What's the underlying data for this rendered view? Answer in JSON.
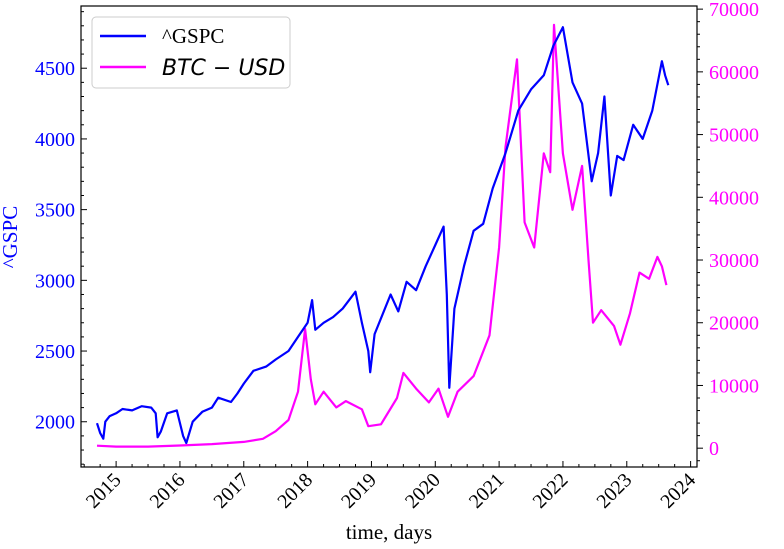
{
  "chart_data": {
    "type": "line",
    "xlabel": "time, days",
    "ylabel_left": "^GSPC",
    "ylabel_right": "",
    "x_ticks": [
      "2015",
      "2016",
      "2017",
      "2018",
      "2019",
      "2020",
      "2021",
      "2022",
      "2023",
      "2024"
    ],
    "x_range": [
      2014.45,
      2024.1
    ],
    "y_left": {
      "range": [
        1680,
        4940
      ],
      "ticks": [
        2000,
        2500,
        3000,
        3500,
        4000,
        4500
      ],
      "color": "#0000ff"
    },
    "y_right": {
      "range": [
        -3000,
        70500
      ],
      "ticks": [
        0,
        10000,
        20000,
        30000,
        40000,
        50000,
        60000,
        70000
      ],
      "color": "#ff00ff"
    },
    "legend_position": "top-left",
    "grid": false,
    "series": [
      {
        "name": "^GSPC",
        "axis": "left",
        "color": "#0000ff",
        "points": [
          [
            2014.7,
            1990
          ],
          [
            2014.75,
            1920
          ],
          [
            2014.8,
            1880
          ],
          [
            2014.83,
            2000
          ],
          [
            2014.9,
            2040
          ],
          [
            2015.0,
            2060
          ],
          [
            2015.1,
            2090
          ],
          [
            2015.25,
            2080
          ],
          [
            2015.4,
            2110
          ],
          [
            2015.55,
            2100
          ],
          [
            2015.62,
            2060
          ],
          [
            2015.65,
            1890
          ],
          [
            2015.7,
            1930
          ],
          [
            2015.8,
            2060
          ],
          [
            2015.95,
            2080
          ],
          [
            2016.05,
            1900
          ],
          [
            2016.1,
            1850
          ],
          [
            2016.2,
            2000
          ],
          [
            2016.35,
            2070
          ],
          [
            2016.5,
            2100
          ],
          [
            2016.6,
            2170
          ],
          [
            2016.8,
            2140
          ],
          [
            2016.9,
            2200
          ],
          [
            2017.0,
            2270
          ],
          [
            2017.15,
            2360
          ],
          [
            2017.35,
            2390
          ],
          [
            2017.5,
            2440
          ],
          [
            2017.7,
            2500
          ],
          [
            2017.85,
            2600
          ],
          [
            2018.0,
            2700
          ],
          [
            2018.07,
            2860
          ],
          [
            2018.12,
            2650
          ],
          [
            2018.25,
            2700
          ],
          [
            2018.4,
            2740
          ],
          [
            2018.55,
            2800
          ],
          [
            2018.75,
            2920
          ],
          [
            2018.85,
            2700
          ],
          [
            2018.95,
            2500
          ],
          [
            2018.98,
            2350
          ],
          [
            2019.05,
            2620
          ],
          [
            2019.3,
            2900
          ],
          [
            2019.42,
            2780
          ],
          [
            2019.55,
            2990
          ],
          [
            2019.7,
            2930
          ],
          [
            2019.85,
            3100
          ],
          [
            2020.0,
            3250
          ],
          [
            2020.13,
            3380
          ],
          [
            2020.18,
            2900
          ],
          [
            2020.22,
            2240
          ],
          [
            2020.3,
            2800
          ],
          [
            2020.45,
            3100
          ],
          [
            2020.6,
            3350
          ],
          [
            2020.75,
            3400
          ],
          [
            2020.9,
            3650
          ],
          [
            2021.1,
            3900
          ],
          [
            2021.3,
            4200
          ],
          [
            2021.5,
            4350
          ],
          [
            2021.7,
            4450
          ],
          [
            2021.85,
            4660
          ],
          [
            2022.0,
            4790
          ],
          [
            2022.15,
            4400
          ],
          [
            2022.3,
            4250
          ],
          [
            2022.45,
            3700
          ],
          [
            2022.55,
            3900
          ],
          [
            2022.65,
            4300
          ],
          [
            2022.75,
            3600
          ],
          [
            2022.85,
            3880
          ],
          [
            2022.95,
            3850
          ],
          [
            2023.1,
            4100
          ],
          [
            2023.25,
            4000
          ],
          [
            2023.4,
            4200
          ],
          [
            2023.55,
            4550
          ],
          [
            2023.6,
            4450
          ],
          [
            2023.65,
            4380
          ]
        ]
      },
      {
        "name": "BTC − USD",
        "axis": "right",
        "color": "#ff00ff",
        "points": [
          [
            2014.7,
            400
          ],
          [
            2015.0,
            250
          ],
          [
            2015.5,
            250
          ],
          [
            2016.0,
            420
          ],
          [
            2016.5,
            650
          ],
          [
            2017.0,
            1000
          ],
          [
            2017.3,
            1500
          ],
          [
            2017.5,
            2700
          ],
          [
            2017.7,
            4500
          ],
          [
            2017.85,
            9000
          ],
          [
            2017.96,
            19000
          ],
          [
            2018.05,
            11000
          ],
          [
            2018.12,
            7000
          ],
          [
            2018.25,
            9000
          ],
          [
            2018.45,
            6500
          ],
          [
            2018.6,
            7500
          ],
          [
            2018.85,
            6200
          ],
          [
            2018.95,
            3500
          ],
          [
            2019.15,
            3800
          ],
          [
            2019.4,
            8000
          ],
          [
            2019.5,
            12000
          ],
          [
            2019.7,
            9500
          ],
          [
            2019.9,
            7300
          ],
          [
            2020.05,
            9500
          ],
          [
            2020.2,
            5000
          ],
          [
            2020.35,
            9000
          ],
          [
            2020.6,
            11500
          ],
          [
            2020.85,
            18000
          ],
          [
            2021.0,
            32000
          ],
          [
            2021.1,
            48000
          ],
          [
            2021.28,
            62000
          ],
          [
            2021.4,
            36000
          ],
          [
            2021.55,
            32000
          ],
          [
            2021.7,
            47000
          ],
          [
            2021.8,
            44000
          ],
          [
            2021.86,
            67500
          ],
          [
            2022.0,
            47000
          ],
          [
            2022.15,
            38000
          ],
          [
            2022.3,
            45000
          ],
          [
            2022.4,
            30000
          ],
          [
            2022.47,
            20000
          ],
          [
            2022.6,
            22000
          ],
          [
            2022.8,
            19500
          ],
          [
            2022.9,
            16500
          ],
          [
            2023.05,
            21500
          ],
          [
            2023.2,
            28000
          ],
          [
            2023.35,
            27000
          ],
          [
            2023.48,
            30500
          ],
          [
            2023.55,
            29000
          ],
          [
            2023.62,
            26000
          ]
        ]
      }
    ]
  }
}
